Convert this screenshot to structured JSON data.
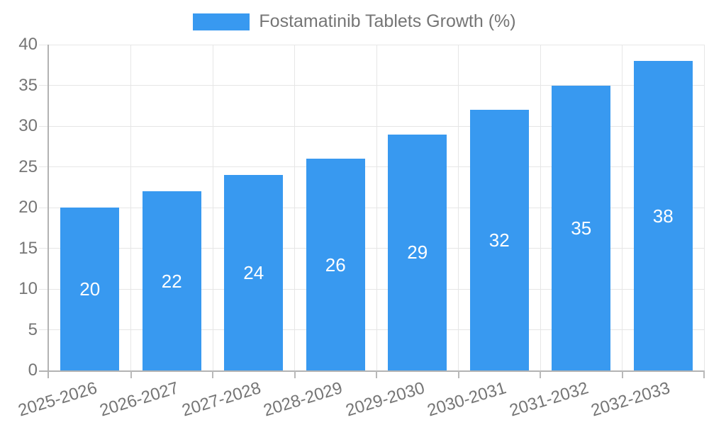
{
  "legend": {
    "label": "Fostamatinib Tablets Growth (%)",
    "swatch_color": "#3899f0"
  },
  "chart_data": {
    "type": "bar",
    "title": "Fostamatinib Tablets Growth (%)",
    "categories": [
      "2025-2026",
      "2026-2027",
      "2027-2028",
      "2028-2029",
      "2029-2030",
      "2030-2031",
      "2031-2032",
      "2032-2033"
    ],
    "values": [
      20,
      22,
      24,
      26,
      29,
      32,
      35,
      38
    ],
    "series_name": "Fostamatinib Tablets Growth (%)",
    "xlabel": "",
    "ylabel": "",
    "ylim": [
      0,
      40
    ],
    "ytick_step": 5,
    "yticks": [
      0,
      5,
      10,
      15,
      20,
      25,
      30,
      35,
      40
    ],
    "grid": true,
    "legend_position": "top-center",
    "bar_labels_inside": true
  },
  "colors": {
    "bar": "#3899f0",
    "bar_label": "#ffffff",
    "grid_line": "#e6e6e6",
    "axis_line": "#b3b3b3",
    "tick_line": "#b9b9b9",
    "text": "#757575",
    "background": "#ffffff"
  }
}
